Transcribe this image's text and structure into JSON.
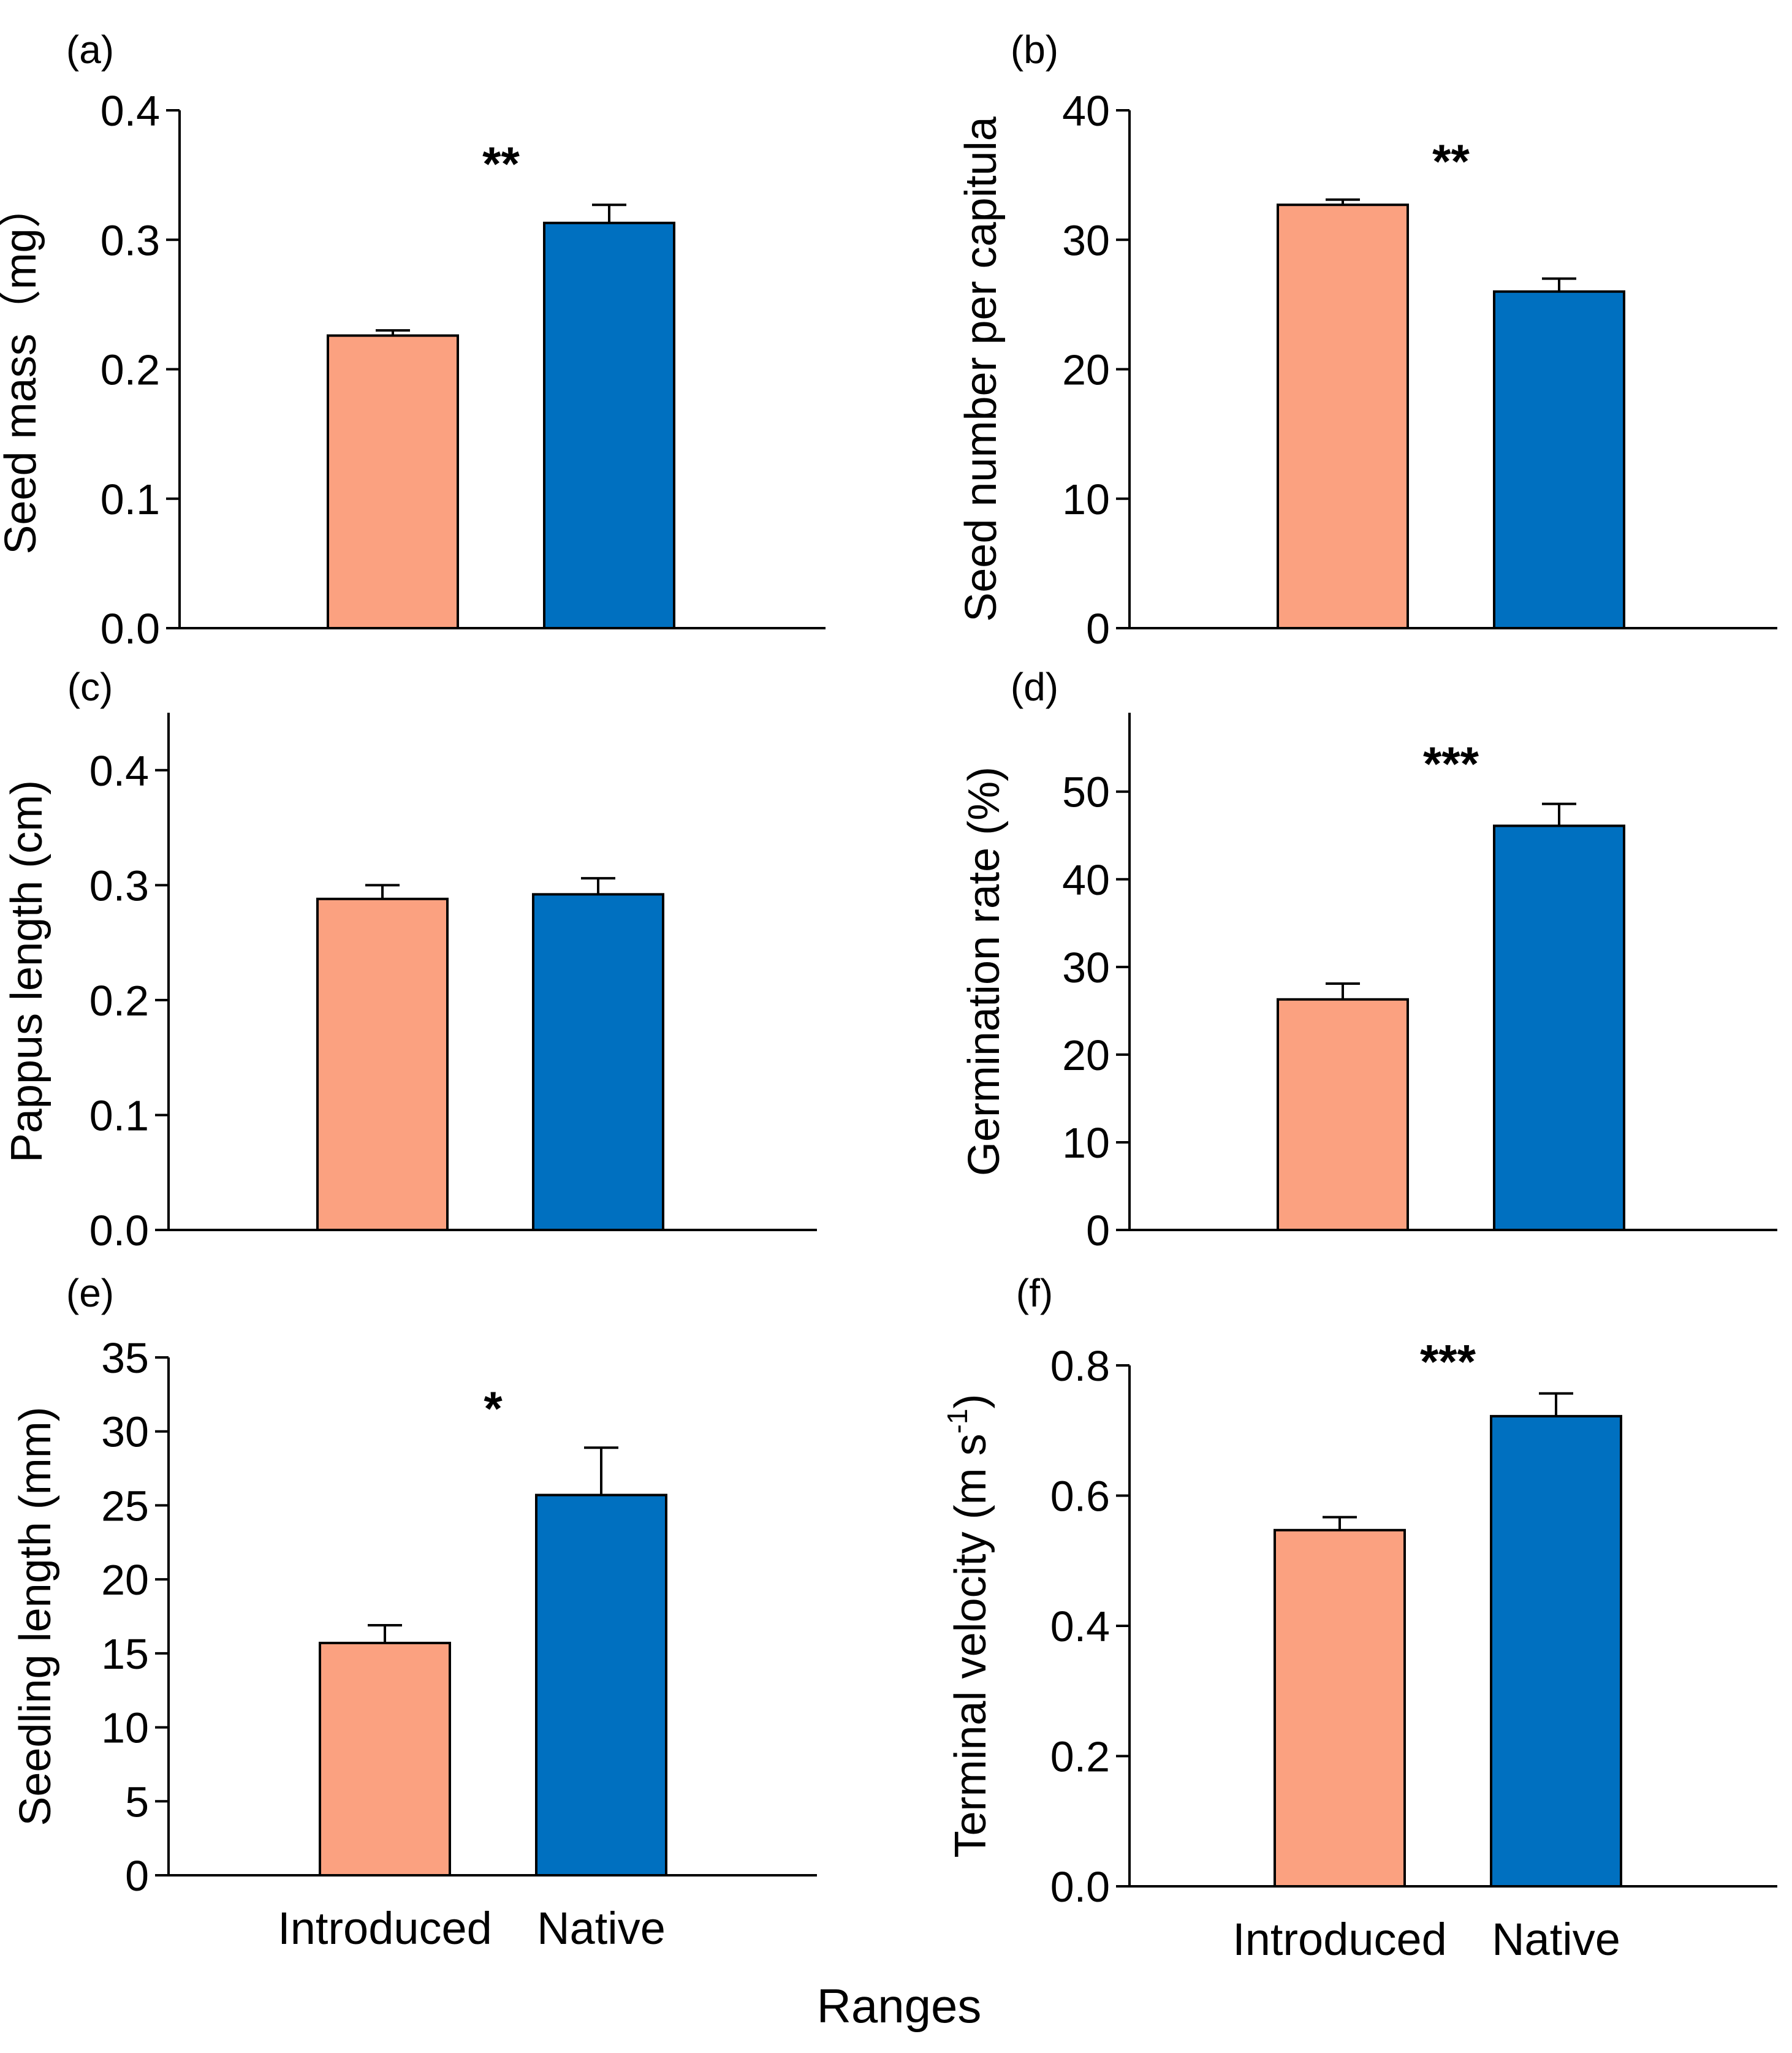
{
  "figure": {
    "x_title": "Ranges",
    "categories": [
      "Introduced",
      "Native"
    ]
  },
  "colors": {
    "introduced": "#FBA180",
    "native": "#0070C0",
    "stroke": "#000000"
  },
  "chart_data": [
    {
      "type": "bar",
      "panel": "(a)",
      "ylabel": "Seed mass（mg）",
      "ylim": [
        0,
        0.4
      ],
      "yticks": [
        "0.0",
        "0.1",
        "0.2",
        "0.3",
        "0.4"
      ],
      "categories": [
        "Introduced",
        "Native"
      ],
      "values": [
        0.226,
        0.313
      ],
      "errors": [
        0.004,
        0.014
      ],
      "significance": "**",
      "show_category_labels": false
    },
    {
      "type": "bar",
      "panel": "(b)",
      "ylabel": "Seed number per capitula",
      "ylim": [
        0,
        40
      ],
      "yticks": [
        "0",
        "10",
        "20",
        "30",
        "40"
      ],
      "categories": [
        "Introduced",
        "Native"
      ],
      "values": [
        32.7,
        26.0
      ],
      "errors": [
        0.4,
        1.0
      ],
      "significance": "**",
      "show_category_labels": false
    },
    {
      "type": "bar",
      "panel": "(c)",
      "ylabel": "Pappus length (cm)",
      "ylim": [
        0,
        0.45
      ],
      "yticks": [
        "0.0",
        "0.1",
        "0.2",
        "0.3",
        "0.4"
      ],
      "categories": [
        "Introduced",
        "Native"
      ],
      "values": [
        0.288,
        0.292
      ],
      "errors": [
        0.012,
        0.014
      ],
      "significance": "",
      "show_category_labels": false
    },
    {
      "type": "bar",
      "panel": "(d)",
      "ylabel": "Germination rate (%)",
      "ylim": [
        0,
        59
      ],
      "yticks": [
        "0",
        "10",
        "20",
        "30",
        "40",
        "50"
      ],
      "categories": [
        "Introduced",
        "Native"
      ],
      "values": [
        26.3,
        46.1
      ],
      "errors": [
        1.8,
        2.5
      ],
      "significance": "***",
      "show_category_labels": false
    },
    {
      "type": "bar",
      "panel": "(e)",
      "ylabel": "Seedling length (mm)",
      "ylim": [
        0,
        35
      ],
      "yticks": [
        "0",
        "5",
        "10",
        "15",
        "20",
        "25",
        "30",
        "35"
      ],
      "categories": [
        "Introduced",
        "Native"
      ],
      "values": [
        15.7,
        25.7
      ],
      "errors": [
        1.2,
        3.2
      ],
      "significance": "*",
      "show_category_labels": true
    },
    {
      "type": "bar",
      "panel": "(f)",
      "ylabel": "Terminal velocity (m s",
      "ylabel_sup": "-1",
      "ylabel_suffix": ")",
      "ylim": [
        0,
        0.8
      ],
      "yticks": [
        "0.0",
        "0.2",
        "0.4",
        "0.6",
        "0.8"
      ],
      "categories": [
        "Introduced",
        "Native"
      ],
      "values": [
        0.547,
        0.722
      ],
      "errors": [
        0.02,
        0.035
      ],
      "significance": "***",
      "show_category_labels": true
    }
  ]
}
